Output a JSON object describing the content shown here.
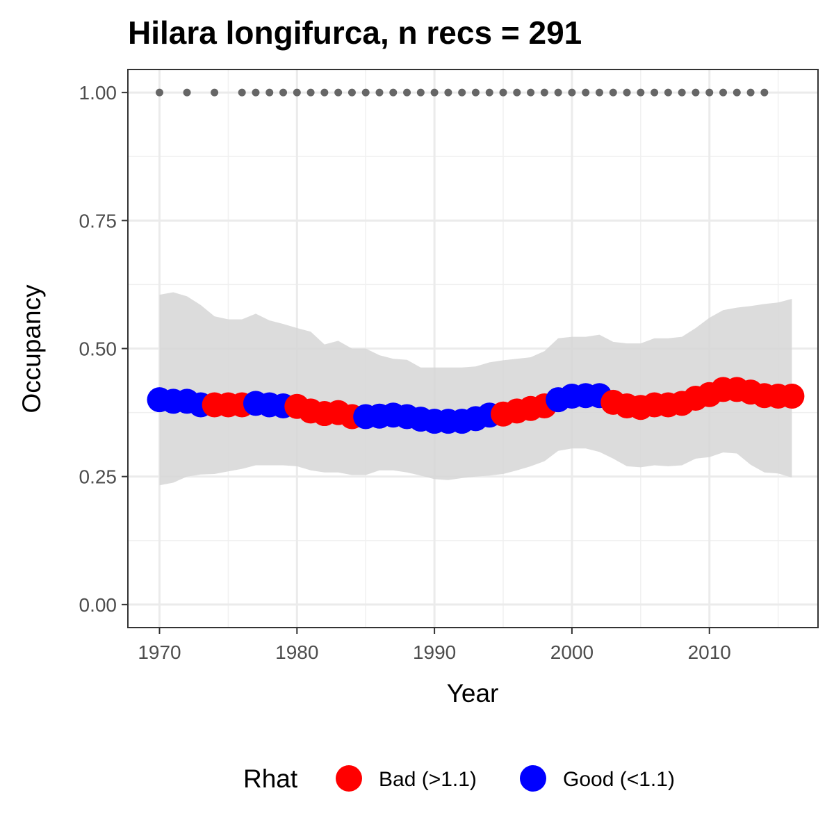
{
  "chart_data": {
    "type": "line",
    "title": "Hilara longifurca, n recs = 291",
    "xlabel": "Year",
    "ylabel": "Occupancy",
    "xlim": [
      1967.7,
      2017.9
    ],
    "ylim": [
      -0.045,
      1.045
    ],
    "x_ticks": [
      1970,
      1980,
      1990,
      2000,
      2010
    ],
    "x_tick_labels": [
      "1970",
      "1980",
      "1990",
      "2000",
      "2010"
    ],
    "y_ticks": [
      0,
      0.25,
      0.5,
      0.75,
      1.0
    ],
    "y_tick_labels": [
      "0.00",
      "0.25",
      "0.50",
      "0.75",
      "1.00"
    ],
    "grid": true,
    "legend": {
      "title": "Rhat",
      "position": "bottom",
      "entries": [
        {
          "label": "Bad (>1.1)",
          "color": "#ff0000"
        },
        {
          "label": "Good (<1.1)",
          "color": "#0000ff"
        }
      ]
    },
    "colors": {
      "bad": "#ff0000",
      "good": "#0000ff",
      "ribbon": "#d6d6d6",
      "record": "#666666"
    },
    "x": [
      1970,
      1971,
      1972,
      1973,
      1974,
      1975,
      1976,
      1977,
      1978,
      1979,
      1980,
      1981,
      1982,
      1983,
      1984,
      1985,
      1986,
      1987,
      1988,
      1989,
      1990,
      1991,
      1992,
      1993,
      1994,
      1995,
      1996,
      1997,
      1998,
      1999,
      2000,
      2001,
      2002,
      2003,
      2004,
      2005,
      2006,
      2007,
      2008,
      2009,
      2010,
      2011,
      2012,
      2013,
      2014,
      2015,
      2016
    ],
    "occupancy": [
      0.4,
      0.397,
      0.397,
      0.39,
      0.39,
      0.39,
      0.39,
      0.393,
      0.39,
      0.388,
      0.387,
      0.378,
      0.373,
      0.375,
      0.367,
      0.367,
      0.368,
      0.37,
      0.367,
      0.362,
      0.358,
      0.358,
      0.358,
      0.363,
      0.37,
      0.372,
      0.378,
      0.383,
      0.388,
      0.4,
      0.407,
      0.408,
      0.408,
      0.395,
      0.388,
      0.385,
      0.39,
      0.39,
      0.393,
      0.403,
      0.41,
      0.42,
      0.42,
      0.415,
      0.408,
      0.407,
      0.407
    ],
    "lower": [
      0.233,
      0.238,
      0.25,
      0.254,
      0.255,
      0.26,
      0.265,
      0.272,
      0.272,
      0.272,
      0.27,
      0.262,
      0.258,
      0.258,
      0.253,
      0.253,
      0.262,
      0.262,
      0.258,
      0.252,
      0.245,
      0.243,
      0.247,
      0.25,
      0.252,
      0.255,
      0.262,
      0.27,
      0.28,
      0.3,
      0.305,
      0.305,
      0.298,
      0.285,
      0.27,
      0.268,
      0.272,
      0.27,
      0.272,
      0.285,
      0.288,
      0.297,
      0.295,
      0.273,
      0.258,
      0.256,
      0.248
    ],
    "upper": [
      0.605,
      0.61,
      0.602,
      0.585,
      0.563,
      0.557,
      0.557,
      0.568,
      0.555,
      0.548,
      0.54,
      0.533,
      0.508,
      0.515,
      0.5,
      0.5,
      0.487,
      0.48,
      0.478,
      0.463,
      0.463,
      0.463,
      0.463,
      0.465,
      0.473,
      0.477,
      0.48,
      0.483,
      0.495,
      0.52,
      0.523,
      0.523,
      0.527,
      0.513,
      0.51,
      0.51,
      0.52,
      0.52,
      0.523,
      0.54,
      0.56,
      0.575,
      0.58,
      0.583,
      0.587,
      0.59,
      0.597
    ],
    "rhat": [
      "good",
      "good",
      "good",
      "good",
      "bad",
      "bad",
      "bad",
      "good",
      "good",
      "good",
      "bad",
      "bad",
      "bad",
      "bad",
      "bad",
      "good",
      "good",
      "good",
      "good",
      "good",
      "good",
      "good",
      "good",
      "good",
      "good",
      "bad",
      "bad",
      "bad",
      "bad",
      "good",
      "good",
      "good",
      "good",
      "bad",
      "bad",
      "bad",
      "bad",
      "bad",
      "bad",
      "bad",
      "bad",
      "bad",
      "bad",
      "bad",
      "bad",
      "bad",
      "bad"
    ],
    "record_years": [
      1970,
      1972,
      1974,
      1976,
      1977,
      1978,
      1979,
      1980,
      1981,
      1982,
      1983,
      1984,
      1985,
      1986,
      1987,
      1988,
      1989,
      1990,
      1991,
      1992,
      1993,
      1994,
      1995,
      1996,
      1997,
      1998,
      1999,
      2000,
      2001,
      2002,
      2003,
      2004,
      2005,
      2006,
      2007,
      2008,
      2009,
      2010,
      2011,
      2012,
      2013,
      2014
    ],
    "record_value": 1.0
  }
}
